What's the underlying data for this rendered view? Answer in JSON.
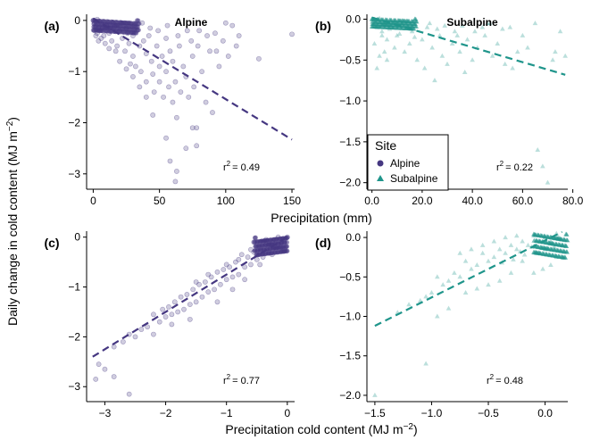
{
  "figure": {
    "y_axis_label": "Daily change in cold content (MJ m",
    "y_axis_label_sup": "−2",
    "y_axis_label_end": ")",
    "x_axis_label_top": "Precipitation (mm)",
    "x_axis_label_bottom": "Precipitation cold content (MJ m",
    "x_axis_label_bottom_sup": "−2",
    "x_axis_label_bottom_end": ")"
  },
  "legend": {
    "title": "Site",
    "items": [
      {
        "label": "Alpine",
        "marker": "circle",
        "color": "#453781"
      },
      {
        "label": "Subalpine",
        "marker": "triangle",
        "color": "#1F958B"
      }
    ]
  },
  "colors": {
    "alpine": "#453781",
    "subalpine": "#1F958B"
  },
  "chart_data": [
    {
      "id": "a",
      "panel_label": "(a)",
      "title": "Alpine",
      "type": "scatter",
      "xlim": [
        -5,
        152
      ],
      "ylim": [
        -3.3,
        0.12
      ],
      "xticks": [
        0,
        50,
        100,
        150
      ],
      "yticks": [
        0,
        -1,
        -2,
        -3
      ],
      "r2_prefix": "r",
      "r2_sup": "2",
      "r2_value": "= 0.49",
      "trend": {
        "x": [
          0,
          150
        ],
        "y": [
          0.04,
          -2.33
        ]
      },
      "points": [
        [
          0,
          0
        ],
        [
          1,
          -0.05
        ],
        [
          2,
          -0.1
        ],
        [
          3,
          0.02
        ],
        [
          4,
          -0.15
        ],
        [
          5,
          -0.2
        ],
        [
          6,
          -0.05
        ],
        [
          8,
          -0.3
        ],
        [
          10,
          -0.1
        ],
        [
          12,
          -0.25
        ],
        [
          14,
          -0.4
        ],
        [
          15,
          -0.05
        ],
        [
          18,
          -0.5
        ],
        [
          20,
          -0.2
        ],
        [
          22,
          -0.35
        ],
        [
          24,
          -0.6
        ],
        [
          25,
          -0.15
        ],
        [
          27,
          -0.45
        ],
        [
          30,
          -0.3
        ],
        [
          30,
          -0.7
        ],
        [
          32,
          -0.9
        ],
        [
          33,
          -0.2
        ],
        [
          35,
          -0.5
        ],
        [
          36,
          -1.0
        ],
        [
          38,
          -0.4
        ],
        [
          40,
          -0.65
        ],
        [
          40,
          -1.2
        ],
        [
          42,
          -0.3
        ],
        [
          44,
          -0.8
        ],
        [
          45,
          -1.05
        ],
        [
          46,
          -1.4
        ],
        [
          48,
          -0.5
        ],
        [
          50,
          -0.9
        ],
        [
          50,
          -1.2
        ],
        [
          52,
          -0.7
        ],
        [
          53,
          -1.5
        ],
        [
          55,
          -0.35
        ],
        [
          55,
          -1.0
        ],
        [
          57,
          -1.3
        ],
        [
          58,
          -0.6
        ],
        [
          60,
          -1.6
        ],
        [
          60,
          -0.8
        ],
        [
          62,
          -1.2
        ],
        [
          63,
          -1.9
        ],
        [
          65,
          -0.5
        ],
        [
          66,
          -1.4
        ],
        [
          68,
          -0.9
        ],
        [
          70,
          -1.1
        ],
        [
          70,
          -2.5
        ],
        [
          72,
          -1.5
        ],
        [
          74,
          -0.4
        ],
        [
          75,
          -0.7
        ],
        [
          76,
          -1.3
        ],
        [
          78,
          -2.1
        ],
        [
          80,
          -0.2
        ],
        [
          82,
          -1.0
        ],
        [
          85,
          -1.6
        ],
        [
          88,
          -0.6
        ],
        [
          90,
          -1.8
        ],
        [
          92,
          -0.25
        ],
        [
          95,
          -0.9
        ],
        [
          100,
          -0.05
        ],
        [
          105,
          -0.1
        ],
        [
          110,
          -0.3
        ],
        [
          125,
          -0.75
        ],
        [
          150,
          -0.27
        ],
        [
          55,
          -2.3
        ],
        [
          58,
          -2.75
        ],
        [
          63,
          -2.95
        ],
        [
          62,
          -3.15
        ],
        [
          75,
          -2.1
        ],
        [
          78,
          -2.45
        ],
        [
          45,
          -1.85
        ],
        [
          40,
          -1.5
        ],
        [
          35,
          -1.3
        ],
        [
          30,
          -1.1
        ],
        [
          28,
          -0.85
        ],
        [
          25,
          -0.95
        ],
        [
          20,
          -0.8
        ],
        [
          17,
          -0.6
        ],
        [
          12,
          -0.55
        ],
        [
          9,
          -0.45
        ],
        [
          6,
          -0.35
        ],
        [
          4,
          -0.4
        ],
        [
          2,
          -0.3
        ],
        [
          1,
          -0.2
        ],
        [
          3,
          -0.25
        ],
        [
          7,
          -0.15
        ],
        [
          11,
          -0.08
        ],
        [
          16,
          -0.12
        ],
        [
          21,
          -0.05
        ],
        [
          26,
          -0.25
        ],
        [
          31,
          -0.1
        ],
        [
          37,
          -0.05
        ],
        [
          43,
          -0.15
        ],
        [
          49,
          -0.2
        ],
        [
          56,
          -0.1
        ],
        [
          64,
          -0.3
        ],
        [
          71,
          -0.2
        ],
        [
          79,
          -0.5
        ],
        [
          86,
          -0.3
        ],
        [
          93,
          -0.6
        ],
        [
          98,
          -0.4
        ],
        [
          102,
          -0.7
        ],
        [
          108,
          -0.5
        ]
      ]
    },
    {
      "id": "b",
      "panel_label": "(b)",
      "title": "Subalpine",
      "type": "scatter",
      "xlim": [
        -2,
        78
      ],
      "ylim": [
        -2.08,
        0.06
      ],
      "xticks": [
        0,
        20,
        40,
        60,
        80
      ],
      "yticks": [
        0.0,
        -0.5,
        -1.0,
        -1.5,
        -2.0
      ],
      "r2_prefix": "r",
      "r2_sup": "2",
      "r2_value": "= 0.22",
      "trend": {
        "x": [
          0,
          77
        ],
        "y": [
          0.02,
          -0.68
        ]
      },
      "points": [
        [
          0,
          0
        ],
        [
          1,
          -0.05
        ],
        [
          2,
          -0.1
        ],
        [
          3,
          0.01
        ],
        [
          4,
          -0.15
        ],
        [
          5,
          -0.05
        ],
        [
          6,
          -0.25
        ],
        [
          8,
          -0.1
        ],
        [
          9,
          -0.35
        ],
        [
          10,
          -0.2
        ],
        [
          12,
          -0.05
        ],
        [
          13,
          -0.4
        ],
        [
          15,
          -0.3
        ],
        [
          16,
          -0.15
        ],
        [
          18,
          -0.5
        ],
        [
          20,
          -0.25
        ],
        [
          21,
          -0.6
        ],
        [
          22,
          -0.1
        ],
        [
          24,
          -0.35
        ],
        [
          25,
          -0.75
        ],
        [
          27,
          -0.2
        ],
        [
          28,
          -0.45
        ],
        [
          30,
          -0.55
        ],
        [
          32,
          -0.3
        ],
        [
          33,
          -0.15
        ],
        [
          35,
          -0.4
        ],
        [
          37,
          -0.65
        ],
        [
          38,
          -0.25
        ],
        [
          40,
          -0.5
        ],
        [
          42,
          -0.35
        ],
        [
          44,
          -0.1
        ],
        [
          45,
          -0.2
        ],
        [
          48,
          -0.45
        ],
        [
          50,
          -0.3
        ],
        [
          53,
          -0.55
        ],
        [
          55,
          -0.1
        ],
        [
          58,
          -0.4
        ],
        [
          60,
          -0.2
        ],
        [
          65,
          -0.05
        ],
        [
          66,
          -1.6
        ],
        [
          68,
          -1.8
        ],
        [
          70,
          -2.0
        ],
        [
          72,
          -0.5
        ],
        [
          75,
          -0.15
        ],
        [
          77,
          -0.45
        ],
        [
          73,
          -0.4
        ],
        [
          62,
          -0.35
        ],
        [
          56,
          -0.6
        ],
        [
          46,
          -0.05
        ],
        [
          36,
          -0.08
        ],
        [
          26,
          -0.12
        ],
        [
          14,
          -0.08
        ],
        [
          7,
          -0.12
        ],
        [
          11,
          -0.18
        ],
        [
          17,
          -0.22
        ],
        [
          23,
          -0.05
        ],
        [
          29,
          -0.08
        ],
        [
          34,
          -0.2
        ],
        [
          41,
          -0.15
        ],
        [
          47,
          -0.05
        ],
        [
          52,
          -0.12
        ],
        [
          1,
          -0.3
        ],
        [
          3,
          -0.45
        ],
        [
          5,
          -0.4
        ],
        [
          2,
          -0.6
        ],
        [
          4,
          -0.2
        ],
        [
          6,
          -0.5
        ]
      ]
    },
    {
      "id": "c",
      "panel_label": "(c)",
      "title": "",
      "type": "scatter",
      "xlim": [
        -3.3,
        0.12
      ],
      "ylim": [
        -3.3,
        0.12
      ],
      "xticks": [
        -3,
        -2,
        -1,
        0
      ],
      "yticks": [
        0,
        -1,
        -2,
        -3
      ],
      "r2_prefix": "r",
      "r2_sup": "2",
      "r2_value": "= 0.77",
      "trend": {
        "x": [
          -3.2,
          0.0
        ],
        "y": [
          -2.4,
          0.0
        ]
      },
      "points": [
        [
          0,
          0
        ],
        [
          -0.05,
          -0.05
        ],
        [
          -0.1,
          -0.1
        ],
        [
          -0.15,
          0
        ],
        [
          -0.2,
          -0.2
        ],
        [
          -0.25,
          -0.1
        ],
        [
          -0.3,
          -0.3
        ],
        [
          -0.35,
          -0.15
        ],
        [
          -0.4,
          -0.4
        ],
        [
          -0.45,
          -0.2
        ],
        [
          -0.5,
          -0.45
        ],
        [
          -0.55,
          -0.3
        ],
        [
          -0.6,
          -0.55
        ],
        [
          -0.65,
          -0.4
        ],
        [
          -0.7,
          -0.6
        ],
        [
          -0.75,
          -0.35
        ],
        [
          -0.8,
          -0.75
        ],
        [
          -0.85,
          -0.5
        ],
        [
          -0.9,
          -0.8
        ],
        [
          -0.95,
          -0.6
        ],
        [
          -1.0,
          -0.85
        ],
        [
          -1.05,
          -0.65
        ],
        [
          -1.1,
          -0.95
        ],
        [
          -1.15,
          -0.7
        ],
        [
          -1.2,
          -1.05
        ],
        [
          -1.25,
          -0.8
        ],
        [
          -1.3,
          -1.1
        ],
        [
          -1.35,
          -0.9
        ],
        [
          -1.4,
          -1.2
        ],
        [
          -1.45,
          -0.95
        ],
        [
          -1.5,
          -1.3
        ],
        [
          -1.55,
          -1.05
        ],
        [
          -1.6,
          -1.35
        ],
        [
          -1.65,
          -1.15
        ],
        [
          -1.7,
          -1.45
        ],
        [
          -1.75,
          -1.2
        ],
        [
          -1.8,
          -1.5
        ],
        [
          -1.85,
          -1.3
        ],
        [
          -1.9,
          -1.55
        ],
        [
          -1.95,
          -1.4
        ],
        [
          -2.0,
          -1.6
        ],
        [
          -2.05,
          -1.45
        ],
        [
          -2.1,
          -1.7
        ],
        [
          -2.2,
          -1.55
        ],
        [
          -2.3,
          -1.8
        ],
        [
          -2.4,
          -1.85
        ],
        [
          -2.5,
          -2.0
        ],
        [
          -2.6,
          -1.95
        ],
        [
          -2.7,
          -2.1
        ],
        [
          -2.85,
          -2.2
        ],
        [
          -3.0,
          -2.65
        ],
        [
          -3.1,
          -2.55
        ],
        [
          -3.15,
          -2.85
        ],
        [
          -2.6,
          -3.15
        ],
        [
          -2.85,
          -2.8
        ],
        [
          -0.2,
          -0.05
        ],
        [
          -0.3,
          -0.15
        ],
        [
          -0.1,
          -0.2
        ],
        [
          -0.6,
          -0.25
        ],
        [
          -0.8,
          -0.45
        ],
        [
          -1.0,
          -0.55
        ],
        [
          -1.3,
          -0.75
        ],
        [
          -1.5,
          -0.9
        ],
        [
          -1.6,
          -1.65
        ],
        [
          -1.9,
          -1.75
        ],
        [
          -2.2,
          -1.95
        ],
        [
          -0.45,
          -0.55
        ],
        [
          -0.7,
          -0.85
        ],
        [
          -0.9,
          -1.05
        ],
        [
          -1.15,
          -1.3
        ],
        [
          -0.35,
          -0.05
        ],
        [
          -0.05,
          -0.25
        ],
        [
          -0.25,
          -0.35
        ],
        [
          -0.15,
          -0.15
        ],
        [
          -0.55,
          -0.1
        ]
      ]
    },
    {
      "id": "d",
      "panel_label": "(d)",
      "title": "",
      "type": "scatter",
      "xlim": [
        -1.57,
        0.2
      ],
      "ylim": [
        -2.08,
        0.08
      ],
      "xticks": [
        -1.5,
        -1.0,
        -0.5,
        0.0
      ],
      "yticks": [
        0.0,
        -0.5,
        -1.0,
        -1.5,
        -2.0
      ],
      "r2_prefix": "r",
      "r2_sup": "2",
      "r2_value": "= 0.48",
      "trend": {
        "x": [
          -1.5,
          0.15
        ],
        "y": [
          -1.12,
          0.07
        ]
      },
      "points": [
        [
          0,
          0
        ],
        [
          -0.05,
          -0.05
        ],
        [
          -0.1,
          0.02
        ],
        [
          -0.15,
          -0.1
        ],
        [
          -0.2,
          -0.05
        ],
        [
          -0.25,
          -0.15
        ],
        [
          -0.3,
          -0.1
        ],
        [
          -0.35,
          -0.2
        ],
        [
          -0.4,
          -0.15
        ],
        [
          -0.45,
          -0.25
        ],
        [
          -0.5,
          -0.3
        ],
        [
          -0.55,
          -0.2
        ],
        [
          -0.6,
          -0.35
        ],
        [
          -0.65,
          -0.4
        ],
        [
          -0.7,
          -0.3
        ],
        [
          -0.75,
          -0.5
        ],
        [
          -0.8,
          -0.45
        ],
        [
          -0.85,
          -0.55
        ],
        [
          -0.9,
          -0.6
        ],
        [
          -0.95,
          -0.5
        ],
        [
          -1.0,
          -0.7
        ],
        [
          -1.05,
          -0.75
        ],
        [
          -1.1,
          -0.8
        ],
        [
          -1.2,
          -0.85
        ],
        [
          -1.3,
          -0.95
        ],
        [
          -1.5,
          -2.0
        ],
        [
          -1.05,
          -1.6
        ],
        [
          0.1,
          0.05
        ],
        [
          0.05,
          -0.05
        ],
        [
          0.15,
          -0.1
        ],
        [
          0.1,
          -0.25
        ],
        [
          0.05,
          -0.35
        ],
        [
          -0.02,
          -0.4
        ],
        [
          -0.1,
          -0.45
        ],
        [
          -0.2,
          -0.3
        ],
        [
          -0.3,
          -0.45
        ],
        [
          -0.4,
          -0.55
        ],
        [
          -0.5,
          -0.6
        ],
        [
          -0.6,
          -0.65
        ],
        [
          -0.7,
          -0.7
        ],
        [
          -0.85,
          -0.9
        ],
        [
          -0.95,
          -1.0
        ],
        [
          -0.25,
          0.02
        ],
        [
          -0.35,
          0.0
        ],
        [
          -0.45,
          -0.05
        ],
        [
          -0.55,
          -0.1
        ],
        [
          -0.65,
          -0.15
        ],
        [
          -0.75,
          -0.2
        ],
        [
          0.12,
          0.0
        ],
        [
          -0.08,
          -0.2
        ],
        [
          -0.18,
          -0.22
        ],
        [
          -0.28,
          -0.28
        ],
        [
          -0.38,
          -0.32
        ],
        [
          0.0,
          -0.15
        ],
        [
          0.08,
          -0.12
        ],
        [
          -0.12,
          -0.12
        ],
        [
          -0.22,
          -0.18
        ]
      ]
    }
  ]
}
